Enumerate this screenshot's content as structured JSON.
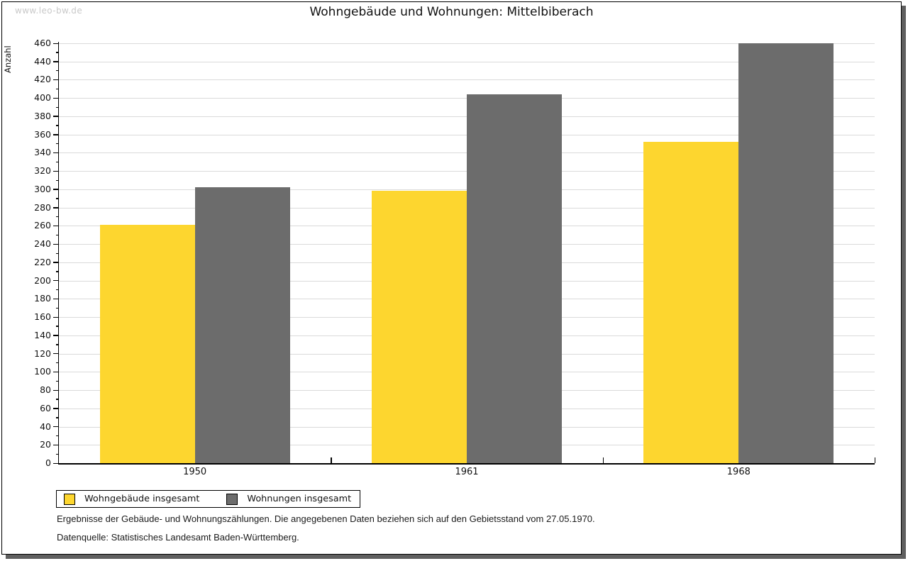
{
  "watermark": "www.leo-bw.de",
  "title": "Wohngebäude und Wohnungen: Mittelbiberach",
  "chart_data": {
    "type": "bar",
    "title": "Wohngebäude und Wohnungen: Mittelbiberach",
    "xlabel": "",
    "ylabel": "Anzahl",
    "categories": [
      "1950",
      "1961",
      "1968"
    ],
    "series": [
      {
        "name": "Wohngebäude insgesamt",
        "color": "#fdd62f",
        "values": [
          261,
          298,
          352
        ]
      },
      {
        "name": "Wohnungen insgesamt",
        "color": "#6c6c6c",
        "values": [
          302,
          404,
          460
        ]
      }
    ],
    "ylim": [
      0,
      460
    ],
    "ytick_step": 20,
    "yminor_step": 10,
    "grid": "horizontal-major",
    "gridline_color": "#dadada",
    "legend_position": "bottom-left"
  },
  "legend": {
    "item1": "Wohngebäude insgesamt",
    "item2": "Wohnungen insgesamt"
  },
  "footnotes": {
    "line1": "Ergebnisse der Gebäude- und Wohnungszählungen. Die angegebenen Daten beziehen sich auf den Gebietsstand vom 27.05.1970.",
    "line2": "Datenquelle: Statistisches Landesamt Baden-Württemberg."
  }
}
